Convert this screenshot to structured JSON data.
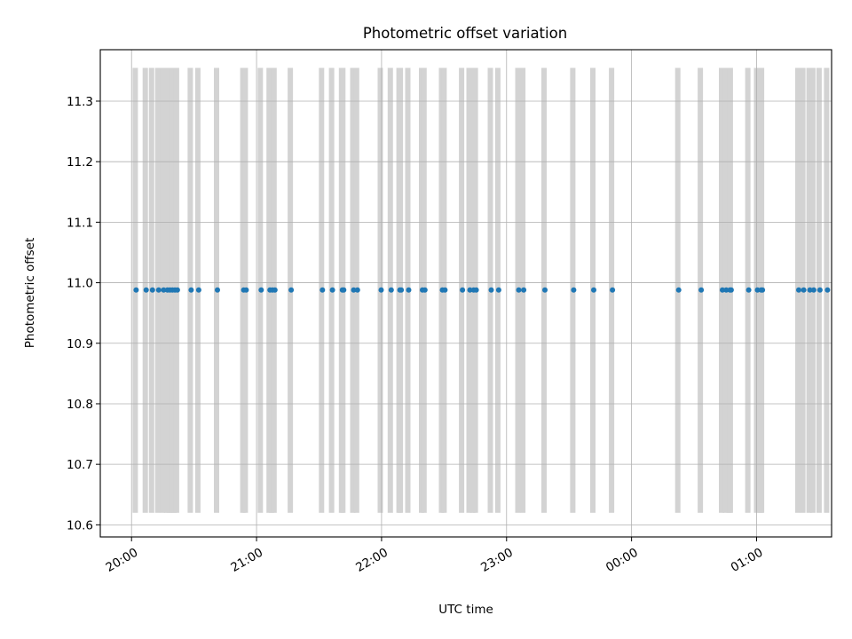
{
  "chart_data": {
    "type": "scatter",
    "title": "Photometric offset variation",
    "xlabel": "UTC time",
    "ylabel": "Photometric offset",
    "x_start": "20:00",
    "xlim_hours": [
      -0.25,
      5.6
    ],
    "ylim": [
      10.58,
      11.385
    ],
    "y_ticks": [
      10.6,
      10.7,
      10.8,
      10.9,
      11.0,
      11.1,
      11.2,
      11.3
    ],
    "y_tick_labels": [
      "10.6",
      "10.7",
      "10.8",
      "10.9",
      "11.0",
      "11.1",
      "11.2",
      "11.3"
    ],
    "x_ticks_hours": [
      0,
      1,
      2,
      3,
      4,
      5
    ],
    "x_tick_labels": [
      "20:00",
      "21:00",
      "22:00",
      "23:00",
      "00:00",
      "01:00"
    ],
    "grid": true,
    "band_range": [
      10.62,
      11.355
    ],
    "band_color": "#d3d3d3",
    "point_color": "#1f77b4",
    "series": [
      {
        "x_hours": [
          0.03,
          0.11,
          0.16,
          0.21,
          0.25,
          0.28,
          0.3,
          0.32,
          0.34,
          0.36,
          0.47,
          0.53,
          0.68,
          0.89,
          0.91,
          1.03,
          1.1,
          1.12,
          1.14,
          1.27,
          1.52,
          1.6,
          1.68,
          1.69,
          1.77,
          1.8,
          1.99,
          2.07,
          2.14,
          2.15,
          2.21,
          2.32,
          2.34,
          2.48,
          2.5,
          2.64,
          2.7,
          2.73,
          2.75,
          2.87,
          2.93,
          3.09,
          3.13,
          3.3,
          3.53,
          3.69,
          3.84,
          4.37,
          4.55,
          4.72,
          4.75,
          4.78,
          4.79,
          4.93,
          5.0,
          5.03,
          5.04,
          5.33,
          5.37,
          5.42,
          5.45,
          5.5,
          5.56
        ],
        "values": [
          10.988,
          10.988,
          10.988,
          10.988,
          10.988,
          10.988,
          10.988,
          10.988,
          10.988,
          10.988,
          10.988,
          10.988,
          10.988,
          10.988,
          10.988,
          10.988,
          10.988,
          10.988,
          10.988,
          10.988,
          10.988,
          10.988,
          10.988,
          10.988,
          10.988,
          10.988,
          10.988,
          10.988,
          10.988,
          10.988,
          10.988,
          10.988,
          10.988,
          10.988,
          10.988,
          10.988,
          10.988,
          10.988,
          10.988,
          10.988,
          10.988,
          10.988,
          10.988,
          10.988,
          10.988,
          10.988,
          10.988,
          10.988,
          10.988,
          10.988,
          10.988,
          10.988,
          10.988,
          10.988,
          10.988,
          10.988,
          10.988,
          10.988,
          10.988,
          10.988,
          10.988,
          10.988,
          10.988
        ]
      }
    ]
  }
}
